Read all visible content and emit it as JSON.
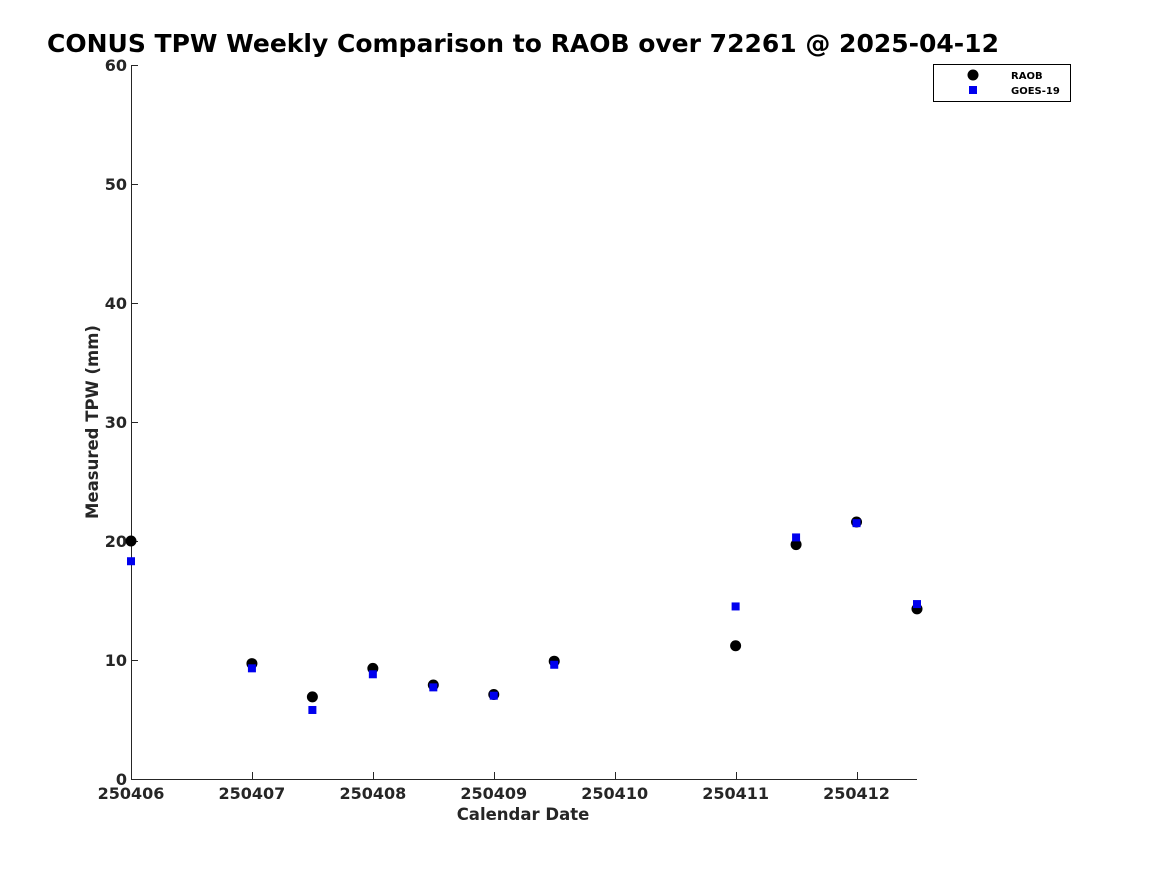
{
  "colors": {
    "raob": "#000000",
    "goes": "#0000ee",
    "axis": "#262626"
  },
  "chart_data": {
    "type": "scatter",
    "title": "CONUS TPW Weekly Comparison to RAOB over 72261 @ 2025-04-12",
    "xlabel": "Calendar Date",
    "ylabel": "Measured TPW (mm)",
    "xlim": [
      0,
      6.5
    ],
    "ylim": [
      0,
      60
    ],
    "x_ticks": [
      0,
      1,
      2,
      3,
      4,
      5,
      6
    ],
    "x_tick_labels": [
      "250406",
      "250407",
      "250408",
      "250409",
      "250410",
      "250411",
      "250412"
    ],
    "y_ticks": [
      0,
      10,
      20,
      30,
      40,
      50,
      60
    ],
    "y_tick_labels": [
      "0",
      "10",
      "20",
      "30",
      "40",
      "50",
      "60"
    ],
    "legend_position": "top-right",
    "grid": false,
    "series": [
      {
        "name": "RAOB",
        "marker": "circle",
        "color": "#000000",
        "x": [
          0,
          1,
          1.5,
          2,
          2.5,
          3,
          3.5,
          5,
          5.5,
          6,
          6.5
        ],
        "y": [
          20.0,
          9.7,
          6.9,
          9.3,
          7.9,
          7.1,
          9.9,
          11.2,
          19.7,
          21.6,
          14.3
        ]
      },
      {
        "name": "GOES-19",
        "marker": "square",
        "color": "#0000ee",
        "x": [
          0,
          1,
          1.5,
          2,
          2.5,
          3,
          3.5,
          5,
          5.5,
          6,
          6.5
        ],
        "y": [
          18.3,
          9.3,
          5.8,
          8.8,
          7.7,
          7.0,
          9.6,
          14.5,
          20.3,
          21.5,
          14.7
        ]
      }
    ]
  }
}
